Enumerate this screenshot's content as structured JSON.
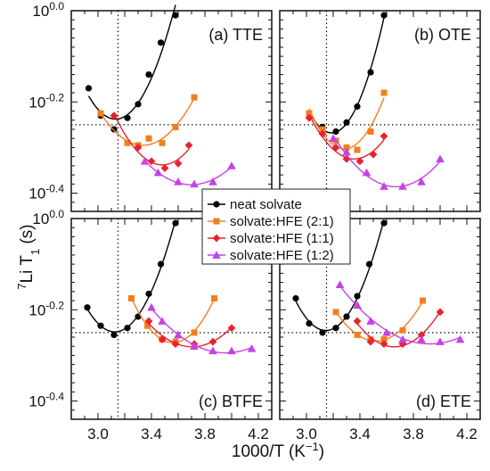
{
  "chart_data": {
    "type": "scatter",
    "xlabel_text": "1000/T (K",
    "xlabel_sup": "−1",
    "xlabel_close": ")",
    "ylabel_sup": "7",
    "ylabel_main": "Li T",
    "ylabel_sub": "1",
    "ylabel_unit": " (s)",
    "xlim": [
      2.8,
      4.3
    ],
    "ylim_log10": [
      -0.44,
      0.0
    ],
    "y_scale": "log",
    "x_ticks": [
      {
        "value": 3.0,
        "label": "3.0"
      },
      {
        "value": 3.4,
        "label": "3.4"
      },
      {
        "value": 3.8,
        "label": "3.8"
      },
      {
        "value": 4.2,
        "label": "4.2"
      }
    ],
    "y_ticks": [
      {
        "exp": 0.0,
        "base": "10",
        "sup": "0.0"
      },
      {
        "exp": -0.2,
        "base": "10",
        "sup": "-0.2"
      },
      {
        "exp": -0.4,
        "base": "10",
        "sup": "-0.4"
      }
    ],
    "ref_x": 3.15,
    "ref_y_log10": -0.25,
    "legend": {
      "placement": "center",
      "entries": [
        {
          "series": 0,
          "text": "neat solvate"
        },
        {
          "series": 1,
          "text": "solvate:HFE (2:1)"
        },
        {
          "series": 2,
          "text": "solvate:HFE (1:1)"
        },
        {
          "series": 3,
          "text": "solvate:HFE (1:2)"
        }
      ]
    },
    "series_styles": [
      {
        "color": "#000000",
        "marker": "circle"
      },
      {
        "color": "#f07f1f",
        "marker": "square"
      },
      {
        "color": "#e8212f",
        "marker": "diamond"
      },
      {
        "color": "#c243e6",
        "marker": "triangle"
      }
    ],
    "panels": [
      {
        "label": "(a) TTE",
        "label_pos": "top-right",
        "series": [
          {
            "x": [
              2.93,
              3.02,
              3.12,
              3.22,
              3.3,
              3.38,
              3.47,
              3.58
            ],
            "y_log10": [
              -0.17,
              -0.23,
              -0.26,
              -0.235,
              -0.205,
              -0.14,
              -0.07,
              -0.01
            ]
          },
          {
            "x": [
              3.02,
              3.22,
              3.3,
              3.38,
              3.48,
              3.58,
              3.72
            ],
            "y_log10": [
              -0.225,
              -0.29,
              -0.295,
              -0.28,
              -0.29,
              -0.255,
              -0.19
            ]
          },
          {
            "x": [
              3.12,
              3.3,
              3.4,
              3.5,
              3.6,
              3.68
            ],
            "y_log10": [
              -0.23,
              -0.3,
              -0.33,
              -0.345,
              -0.335,
              -0.295
            ]
          },
          {
            "x": [
              3.35,
              3.45,
              3.6,
              3.72,
              3.86,
              4.0
            ],
            "y_log10": [
              -0.33,
              -0.355,
              -0.375,
              -0.38,
              -0.375,
              -0.34
            ]
          }
        ]
      },
      {
        "label": "(b) OTE",
        "label_pos": "top-right",
        "series": [
          {
            "x": [
              3.02,
              3.12,
              3.22,
              3.3,
              3.38,
              3.48,
              3.58
            ],
            "y_log10": [
              -0.225,
              -0.255,
              -0.265,
              -0.245,
              -0.21,
              -0.135,
              -0.01
            ]
          },
          {
            "x": [
              3.02,
              3.12,
              3.22,
              3.3,
              3.38,
              3.48,
              3.58
            ],
            "y_log10": [
              -0.225,
              -0.26,
              -0.285,
              -0.3,
              -0.305,
              -0.265,
              -0.18
            ]
          },
          {
            "x": [
              3.02,
              3.12,
              3.22,
              3.3,
              3.4,
              3.5,
              3.58
            ],
            "y_log10": [
              -0.235,
              -0.27,
              -0.3,
              -0.325,
              -0.33,
              -0.315,
              -0.275
            ]
          },
          {
            "x": [
              3.2,
              3.3,
              3.45,
              3.58,
              3.72,
              3.86,
              4.0
            ],
            "y_log10": [
              -0.28,
              -0.31,
              -0.355,
              -0.385,
              -0.385,
              -0.375,
              -0.325
            ]
          }
        ]
      },
      {
        "label": "(c) BTFE",
        "label_pos": "bottom-right",
        "series": [
          {
            "x": [
              2.92,
              3.02,
              3.12,
              3.22,
              3.3,
              3.38,
              3.47,
              3.58
            ],
            "y_log10": [
              -0.195,
              -0.235,
              -0.255,
              -0.24,
              -0.215,
              -0.165,
              -0.1,
              -0.01
            ]
          },
          {
            "x": [
              3.25,
              3.37,
              3.48,
              3.58,
              3.72,
              3.87
            ],
            "y_log10": [
              -0.175,
              -0.235,
              -0.265,
              -0.27,
              -0.25,
              -0.175
            ]
          },
          {
            "x": [
              3.38,
              3.48,
              3.58,
              3.72,
              3.86,
              4.0
            ],
            "y_log10": [
              -0.225,
              -0.265,
              -0.275,
              -0.275,
              -0.27,
              -0.24
            ]
          },
          {
            "x": [
              3.4,
              3.48,
              3.6,
              3.72,
              3.86,
              4.0,
              4.15
            ],
            "y_log10": [
              -0.195,
              -0.225,
              -0.255,
              -0.28,
              -0.29,
              -0.29,
              -0.285
            ]
          }
        ]
      },
      {
        "label": "(d) ETE",
        "label_pos": "bottom-right",
        "series": [
          {
            "x": [
              2.92,
              3.02,
              3.12,
              3.22,
              3.3,
              3.38,
              3.47,
              3.58
            ],
            "y_log10": [
              -0.175,
              -0.23,
              -0.25,
              -0.24,
              -0.215,
              -0.17,
              -0.1,
              -0.01
            ]
          },
          {
            "x": [
              3.22,
              3.38,
              3.48,
              3.58,
              3.72,
              3.87
            ],
            "y_log10": [
              -0.205,
              -0.255,
              -0.265,
              -0.265,
              -0.245,
              -0.18
            ]
          },
          {
            "x": [
              3.38,
              3.48,
              3.58,
              3.72,
              3.86,
              4.0
            ],
            "y_log10": [
              -0.225,
              -0.27,
              -0.275,
              -0.275,
              -0.255,
              -0.205
            ]
          },
          {
            "x": [
              3.25,
              3.38,
              3.48,
              3.6,
              3.72,
              3.86,
              4.0,
              4.15
            ],
            "y_log10": [
              -0.145,
              -0.19,
              -0.225,
              -0.25,
              -0.265,
              -0.265,
              -0.27,
              -0.265
            ]
          }
        ]
      }
    ]
  }
}
